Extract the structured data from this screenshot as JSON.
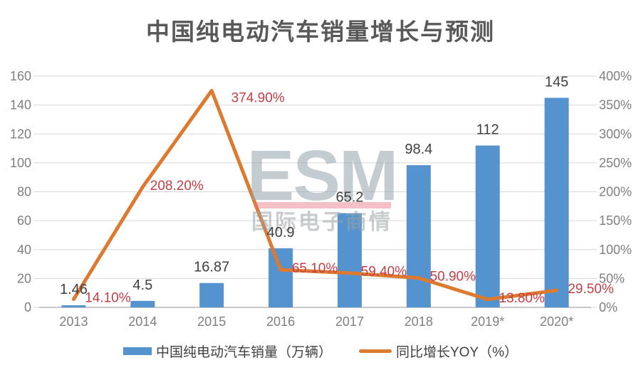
{
  "title": "中国纯电动汽车销量增长与预测",
  "watermark": {
    "brand": "ESM",
    "subtext": "国际电子商情",
    "brand_color": "#93a6ac",
    "underline_color": "#e4717c",
    "subtext_color": "#9aa4a8"
  },
  "legend": [
    {
      "label": "中国纯电动汽车销量（万辆）",
      "swatch": "bar",
      "color": "#5593cf"
    },
    {
      "label": "同比增长YOY（%）",
      "swatch": "line",
      "color": "#dd7a31"
    }
  ],
  "chart_data": {
    "type": "combo-bar-line",
    "categories": [
      "2013",
      "2014",
      "2015",
      "2016",
      "2017",
      "2018",
      "2019*",
      "2020*"
    ],
    "series": [
      {
        "name": "中国纯电动汽车销量（万辆）",
        "type": "bar",
        "axis": "left",
        "color": "#5593cf",
        "values": [
          1.46,
          4.5,
          16.87,
          40.9,
          65.2,
          98.4,
          112,
          145
        ],
        "labels": [
          "1.46",
          "4.5",
          "16.87",
          "40.9",
          "65.2",
          "98.4",
          "112",
          "145"
        ],
        "label_color": "#3f3f3f"
      },
      {
        "name": "同比增长YOY（%）",
        "type": "line",
        "axis": "right",
        "color": "#dd7a31",
        "values": [
          14.1,
          208.2,
          374.9,
          65.1,
          59.4,
          50.9,
          13.8,
          29.5
        ],
        "labels": [
          "14.10%",
          "208.20%",
          "374.90%",
          "65.10%",
          "59.40%",
          "50.90%",
          "13.80%",
          "29.50%"
        ],
        "label_color": "#c53e46"
      }
    ],
    "left_axis": {
      "min": 0,
      "max": 160,
      "step": 20,
      "ticks": [
        "0",
        "20",
        "40",
        "60",
        "80",
        "100",
        "120",
        "140",
        "160"
      ]
    },
    "right_axis": {
      "min": 0,
      "max": 400,
      "step": 50,
      "ticks": [
        "0%",
        "50%",
        "100%",
        "150%",
        "200%",
        "250%",
        "300%",
        "350%",
        "400%"
      ]
    },
    "grid": true,
    "legend_position": "bottom",
    "axis_text_color": "#7f7f7f",
    "grid_color": "#d8d8d8",
    "baseline_color": "#b5b5b5"
  }
}
